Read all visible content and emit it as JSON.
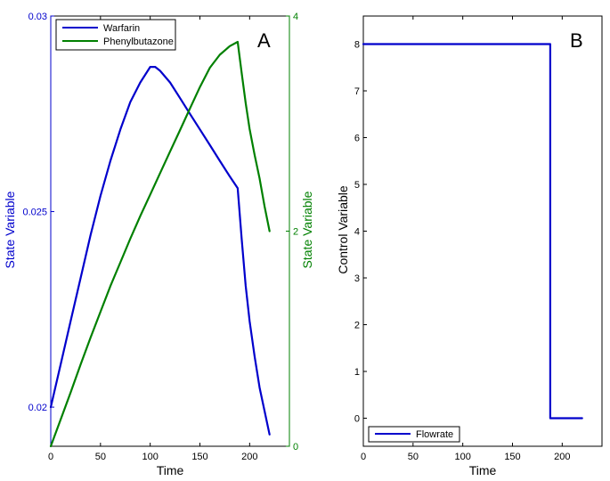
{
  "chart_data": [
    {
      "type": "line",
      "panel_label": "A",
      "xlabel": "Time",
      "ylabel_left": "State Variable",
      "ylabel_right": "State Variable",
      "xlim": [
        0,
        240
      ],
      "ylim_left": [
        0.019,
        0.03
      ],
      "ylim_right": [
        0,
        4
      ],
      "x_ticks": [
        "0",
        "50",
        "100",
        "150",
        "200"
      ],
      "y_left_ticks": [
        "0.02",
        "0.025",
        "0.03"
      ],
      "y_right_ticks": [
        "0",
        "2",
        "4"
      ],
      "legend_position": "top-left",
      "colors": {
        "left_axis": "#0000cc",
        "right_axis": "#008000"
      },
      "series": [
        {
          "name": "Warfarin",
          "axis": "left",
          "color": "#0000cc",
          "x": [
            0,
            10,
            20,
            30,
            40,
            50,
            60,
            70,
            80,
            90,
            100,
            105,
            110,
            120,
            130,
            140,
            150,
            160,
            170,
            180,
            188,
            192,
            196,
            200,
            205,
            210,
            215,
            220
          ],
          "y": [
            0.02,
            0.0211,
            0.0222,
            0.0233,
            0.0244,
            0.0254,
            0.0263,
            0.0271,
            0.0278,
            0.0283,
            0.0287,
            0.0287,
            0.0286,
            0.0283,
            0.0279,
            0.0275,
            0.0271,
            0.0267,
            0.0263,
            0.0259,
            0.0256,
            0.0243,
            0.0231,
            0.0222,
            0.0213,
            0.0205,
            0.0199,
            0.0193
          ]
        },
        {
          "name": "Phenylbutazone",
          "axis": "right",
          "color": "#008000",
          "x": [
            0,
            10,
            20,
            30,
            40,
            50,
            60,
            70,
            80,
            90,
            100,
            110,
            120,
            130,
            140,
            150,
            160,
            170,
            180,
            188,
            192,
            196,
            200,
            205,
            210,
            215,
            220
          ],
          "y": [
            0.0,
            0.25,
            0.5,
            0.76,
            1.01,
            1.25,
            1.49,
            1.71,
            1.93,
            2.14,
            2.34,
            2.54,
            2.74,
            2.94,
            3.14,
            3.34,
            3.52,
            3.64,
            3.72,
            3.76,
            3.47,
            3.19,
            2.95,
            2.71,
            2.49,
            2.23,
            2.0
          ]
        }
      ]
    },
    {
      "type": "line",
      "panel_label": "B",
      "xlabel": "Time",
      "ylabel": "Control Variable",
      "xlim": [
        0,
        240
      ],
      "ylim": [
        -0.6,
        8.6
      ],
      "x_ticks": [
        "0",
        "50",
        "100",
        "150",
        "200"
      ],
      "y_ticks": [
        "0",
        "1",
        "2",
        "3",
        "4",
        "5",
        "6",
        "7",
        "8"
      ],
      "legend_position": "bottom-left",
      "series": [
        {
          "name": "Flowrate",
          "color": "#0000cc",
          "x": [
            0,
            188,
            188,
            220
          ],
          "y": [
            8,
            8,
            0,
            0
          ]
        }
      ]
    }
  ]
}
